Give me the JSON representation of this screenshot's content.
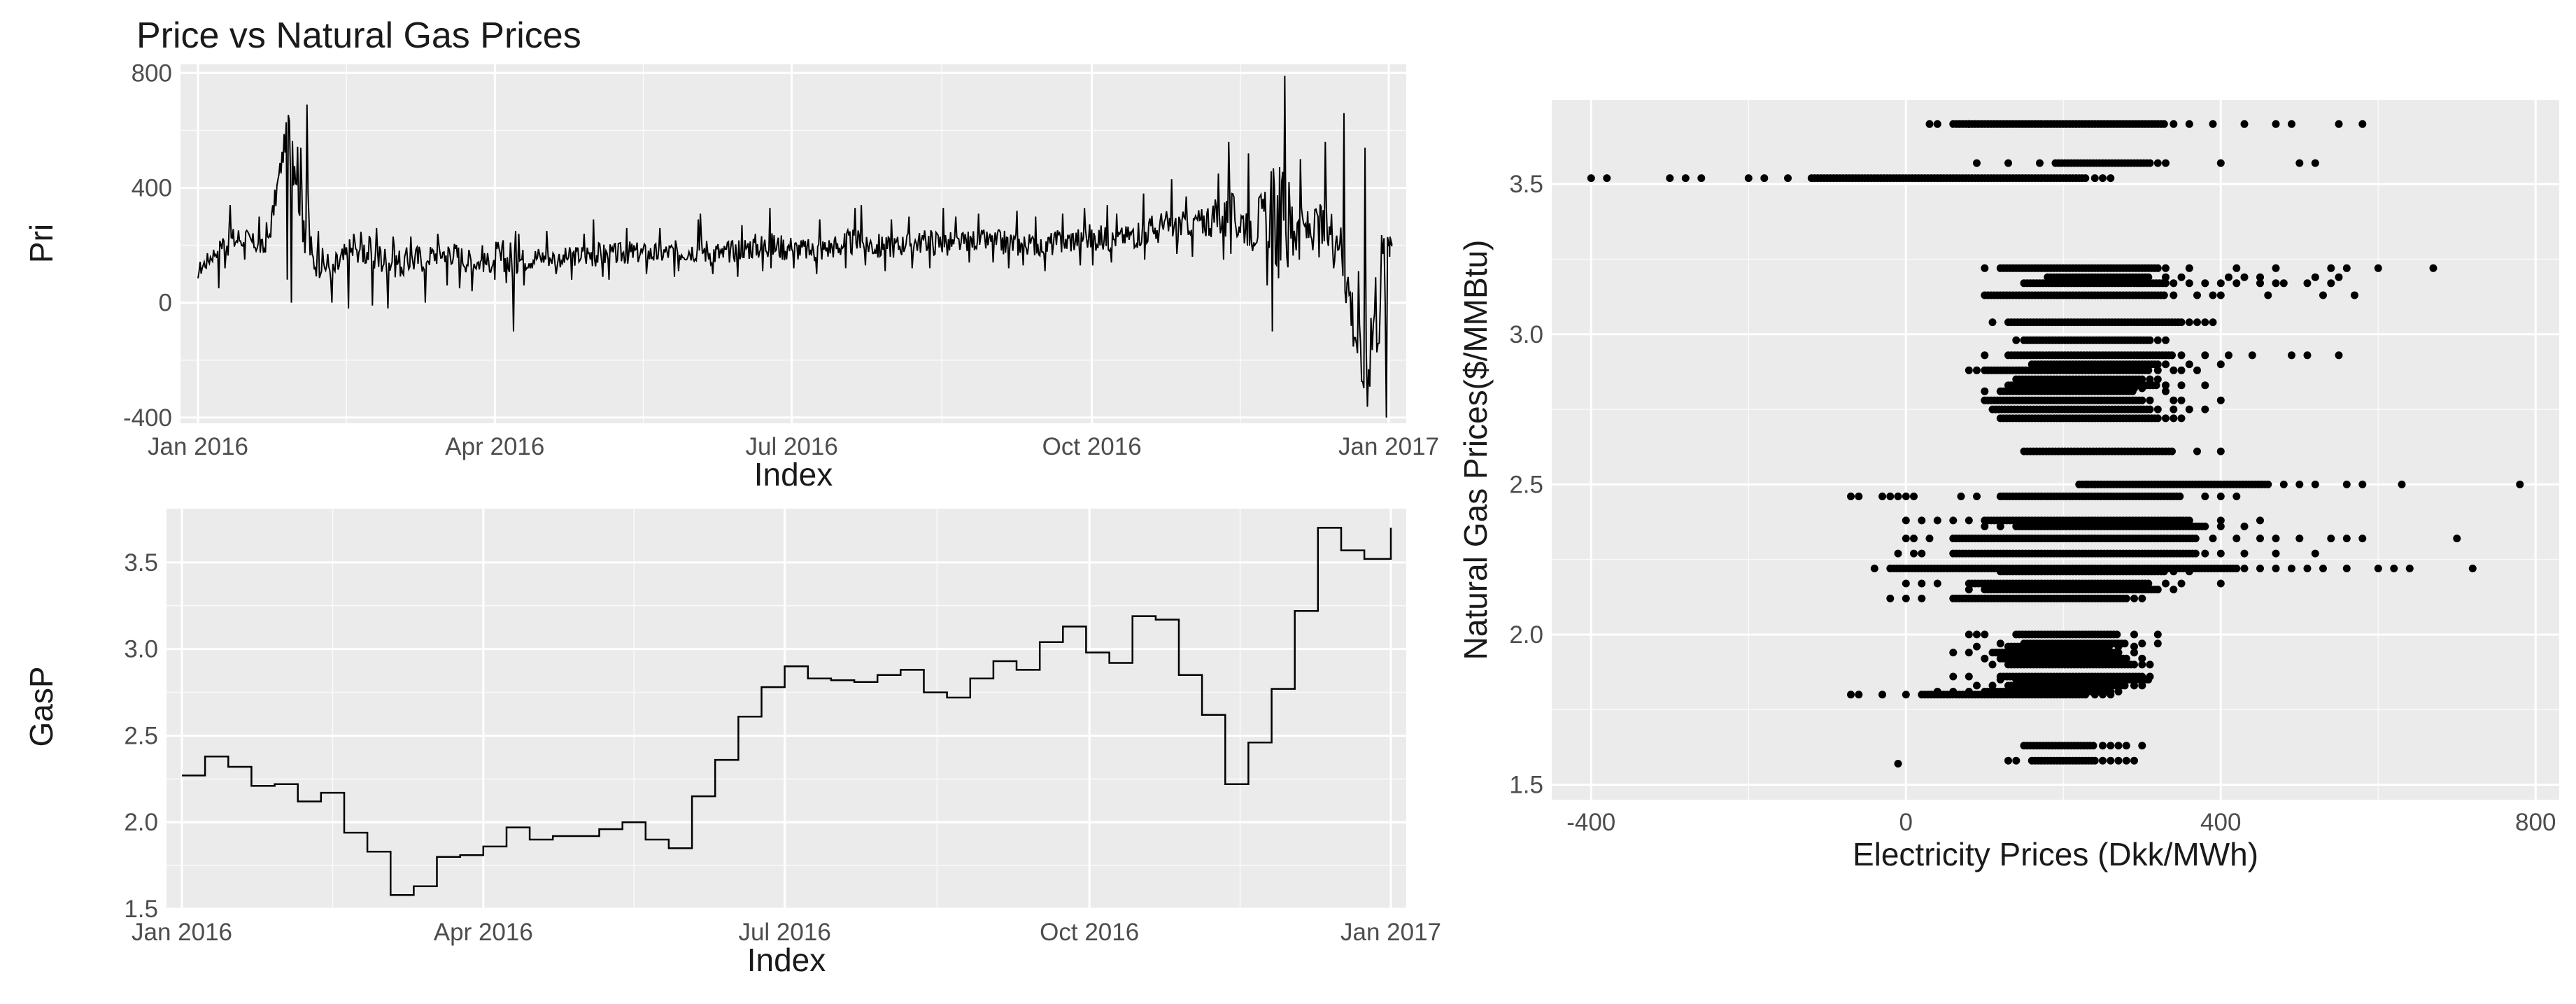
{
  "chart_data": [
    {
      "type": "line",
      "title": "Price vs Natural Gas Prices",
      "xlabel": "Index",
      "ylabel": "Pri",
      "x_ticks": [
        "Jan 2016",
        "Apr 2016",
        "Jul 2016",
        "Oct 2016",
        "Jan 2017"
      ],
      "y_ticks": [
        "-400",
        "0",
        "400",
        "800"
      ],
      "xlim": [
        "2016-01-01",
        "2016-12-31"
      ],
      "ylim": [
        -420,
        830
      ],
      "grid": true,
      "series": [
        {
          "x": [
            "2016-01-01",
            "2016-01-08",
            "2016-01-15",
            "2016-01-22",
            "2016-01-29",
            "2016-02-05",
            "2016-02-12",
            "2016-02-19",
            "2016-02-26",
            "2016-03-04",
            "2016-03-11",
            "2016-03-18",
            "2016-03-25",
            "2016-04-01",
            "2016-04-08",
            "2016-04-15",
            "2016-04-22",
            "2016-04-29",
            "2016-05-06",
            "2016-05-13",
            "2016-05-20",
            "2016-05-27",
            "2016-06-03",
            "2016-06-10",
            "2016-06-17",
            "2016-06-24",
            "2016-07-01",
            "2016-07-08",
            "2016-07-15",
            "2016-07-22",
            "2016-07-29",
            "2016-08-05",
            "2016-08-12",
            "2016-08-19",
            "2016-08-26",
            "2016-09-02",
            "2016-09-09",
            "2016-09-16",
            "2016-09-23",
            "2016-09-30",
            "2016-10-07",
            "2016-10-14",
            "2016-10-21",
            "2016-10-28",
            "2016-11-04",
            "2016-11-11",
            "2016-11-18",
            "2016-11-25",
            "2016-12-02",
            "2016-12-09",
            "2016-12-16",
            "2016-12-23",
            "2016-12-31"
          ],
          "y": [
            110,
            200,
            230,
            180,
            650,
            150,
            120,
            200,
            150,
            140,
            160,
            180,
            140,
            140,
            150,
            160,
            155,
            170,
            165,
            175,
            170,
            180,
            185,
            170,
            195,
            200,
            190,
            180,
            200,
            215,
            190,
            205,
            215,
            200,
            220,
            210,
            205,
            200,
            215,
            230,
            220,
            240,
            260,
            270,
            290,
            300,
            280,
            290,
            260,
            250,
            240,
            -250,
            210
          ],
          "y_max": [
            180,
            340,
            300,
            280,
            690,
            250,
            240,
            260,
            230,
            230,
            240,
            250,
            200,
            250,
            240,
            250,
            240,
            290,
            260,
            270,
            260,
            290,
            310,
            270,
            320,
            330,
            300,
            290,
            330,
            340,
            290,
            300,
            330,
            300,
            310,
            320,
            300,
            310,
            330,
            340,
            310,
            380,
            430,
            370,
            450,
            560,
            520,
            790,
            500,
            560,
            660,
            540,
            230
          ],
          "y_min": [
            50,
            120,
            150,
            80,
            0,
            0,
            -20,
            -10,
            -20,
            0,
            60,
            50,
            40,
            -100,
            60,
            100,
            80,
            90,
            80,
            100,
            90,
            110,
            100,
            90,
            110,
            120,
            120,
            100,
            120,
            130,
            110,
            120,
            120,
            140,
            140,
            120,
            130,
            110,
            130,
            130,
            140,
            150,
            170,
            160,
            150,
            170,
            60,
            -100,
            150,
            120,
            110,
            -400,
            160
          ]
        }
      ]
    },
    {
      "type": "line",
      "title": "",
      "xlabel": "Index",
      "ylabel": "GasP",
      "x_ticks": [
        "Jan 2016",
        "Apr 2016",
        "Jul 2016",
        "Oct 2016",
        "Jan 2017"
      ],
      "y_ticks": [
        "1.5",
        "2.0",
        "2.5",
        "3.0",
        "3.5"
      ],
      "xlim": [
        "2016-01-01",
        "2016-12-31"
      ],
      "ylim": [
        1.5,
        3.75
      ],
      "grid": true,
      "step": true,
      "series": [
        {
          "x": [
            "2016-01-01",
            "2016-01-08",
            "2016-01-15",
            "2016-01-22",
            "2016-01-29",
            "2016-02-05",
            "2016-02-12",
            "2016-02-19",
            "2016-02-26",
            "2016-03-04",
            "2016-03-11",
            "2016-03-18",
            "2016-03-25",
            "2016-04-01",
            "2016-04-08",
            "2016-04-15",
            "2016-04-22",
            "2016-04-29",
            "2016-05-06",
            "2016-05-13",
            "2016-05-20",
            "2016-05-27",
            "2016-06-03",
            "2016-06-10",
            "2016-06-17",
            "2016-06-24",
            "2016-07-01",
            "2016-07-08",
            "2016-07-15",
            "2016-07-22",
            "2016-07-29",
            "2016-08-05",
            "2016-08-12",
            "2016-08-19",
            "2016-08-26",
            "2016-09-02",
            "2016-09-09",
            "2016-09-16",
            "2016-09-23",
            "2016-09-30",
            "2016-10-07",
            "2016-10-14",
            "2016-10-21",
            "2016-10-28",
            "2016-11-04",
            "2016-11-11",
            "2016-11-18",
            "2016-11-25",
            "2016-12-02",
            "2016-12-09",
            "2016-12-16",
            "2016-12-23",
            "2016-12-31"
          ],
          "y": [
            2.27,
            2.38,
            2.32,
            2.21,
            2.22,
            2.12,
            2.17,
            1.94,
            1.83,
            1.58,
            1.63,
            1.8,
            1.81,
            1.86,
            1.97,
            1.9,
            1.92,
            1.92,
            1.96,
            2.0,
            1.9,
            1.85,
            2.15,
            2.36,
            2.61,
            2.78,
            2.9,
            2.83,
            2.82,
            2.81,
            2.85,
            2.88,
            2.75,
            2.72,
            2.83,
            2.93,
            2.88,
            3.04,
            3.13,
            2.98,
            2.92,
            3.19,
            3.17,
            2.85,
            2.62,
            2.22,
            2.46,
            2.77,
            3.22,
            3.7,
            3.57,
            3.52,
            3.7
          ]
        }
      ]
    },
    {
      "type": "scatter",
      "title": "",
      "xlabel": "Electricity Prices (Dkk/MWh)",
      "ylabel": "Natural Gas Prices($/MMBtu)",
      "x_ticks": [
        "-400",
        "0",
        "400",
        "800"
      ],
      "y_ticks": [
        "1.5",
        "2.0",
        "2.5",
        "3.0",
        "3.5"
      ],
      "xlim": [
        -450,
        830
      ],
      "ylim": [
        1.45,
        3.78
      ],
      "grid": true,
      "bands": [
        {
          "y": 3.7,
          "x_from": 60,
          "x_to": 330,
          "outliers": [
            30,
            40,
            80,
            340,
            360,
            390,
            430,
            470,
            490,
            550,
            580
          ]
        },
        {
          "y": 3.57,
          "x_from": 190,
          "x_to": 310,
          "outliers": [
            90,
            130,
            170,
            320,
            330,
            400,
            500,
            520
          ]
        },
        {
          "y": 3.52,
          "x_from": -120,
          "x_to": 230,
          "outliers": [
            -400,
            -380,
            -300,
            -280,
            -260,
            -200,
            -180,
            -150,
            240,
            250,
            260
          ]
        },
        {
          "y": 3.22,
          "x_from": 120,
          "x_to": 320,
          "outliers": [
            100,
            330,
            360,
            420,
            470,
            540,
            560,
            600,
            670
          ]
        },
        {
          "y": 3.19,
          "x_from": 180,
          "x_to": 310,
          "outliers": [
            330,
            350,
            410,
            430,
            450,
            520,
            550
          ]
        },
        {
          "y": 3.17,
          "x_from": 150,
          "x_to": 330,
          "outliers": [
            340,
            360,
            380,
            400,
            420,
            450,
            470,
            480,
            510,
            540
          ]
        },
        {
          "y": 3.13,
          "x_from": 100,
          "x_to": 330,
          "outliers": [
            340,
            370,
            390,
            400,
            460,
            530,
            570
          ]
        },
        {
          "y": 3.04,
          "x_from": 130,
          "x_to": 350,
          "outliers": [
            110,
            360,
            370,
            380,
            390
          ]
        },
        {
          "y": 2.98,
          "x_from": 150,
          "x_to": 310,
          "outliers": [
            140,
            320,
            330
          ]
        },
        {
          "y": 2.93,
          "x_from": 130,
          "x_to": 340,
          "outliers": [
            100,
            350,
            380,
            410,
            440,
            490,
            510,
            550
          ]
        },
        {
          "y": 2.9,
          "x_from": 160,
          "x_to": 320,
          "outliers": [
            330,
            360,
            400
          ]
        },
        {
          "y": 2.88,
          "x_from": 100,
          "x_to": 310,
          "outliers": [
            80,
            90,
            320,
            340,
            350,
            370
          ]
        },
        {
          "y": 2.85,
          "x_from": 140,
          "x_to": 300,
          "outliers": [
            310,
            320
          ]
        },
        {
          "y": 2.83,
          "x_from": 130,
          "x_to": 320,
          "outliers": [
            330,
            350,
            380
          ]
        },
        {
          "y": 2.82,
          "x_from": 150,
          "x_to": 290,
          "outliers": [
            300
          ]
        },
        {
          "y": 2.81,
          "x_from": 120,
          "x_to": 290,
          "outliers": [
            100,
            330
          ]
        },
        {
          "y": 2.78,
          "x_from": 100,
          "x_to": 300,
          "outliers": [
            310,
            340,
            350,
            400
          ]
        },
        {
          "y": 2.75,
          "x_from": 110,
          "x_to": 310,
          "outliers": [
            320,
            340,
            360,
            380
          ]
        },
        {
          "y": 2.72,
          "x_from": 120,
          "x_to": 320,
          "outliers": [
            330,
            340,
            350
          ]
        },
        {
          "y": 2.61,
          "x_from": 150,
          "x_to": 340,
          "outliers": [
            370,
            400
          ]
        },
        {
          "y": 2.5,
          "x_from": 220,
          "x_to": 460,
          "outliers": [
            230,
            240,
            480,
            500,
            520,
            560,
            580,
            630,
            780
          ]
        },
        {
          "y": 2.46,
          "x_from": 120,
          "x_to": 350,
          "outliers": [
            -70,
            -60,
            -30,
            -20,
            -10,
            0,
            10,
            70,
            90,
            380,
            400,
            420
          ]
        },
        {
          "y": 2.38,
          "x_from": 100,
          "x_to": 360,
          "outliers": [
            0,
            20,
            40,
            60,
            80,
            400,
            450
          ]
        },
        {
          "y": 2.36,
          "x_from": 140,
          "x_to": 380,
          "outliers": [
            100,
            120,
            400,
            430
          ]
        },
        {
          "y": 2.32,
          "x_from": 60,
          "x_to": 370,
          "outliers": [
            0,
            10,
            30,
            390,
            420,
            450,
            470,
            500,
            540,
            560,
            580,
            700
          ]
        },
        {
          "y": 2.27,
          "x_from": 60,
          "x_to": 370,
          "outliers": [
            -10,
            10,
            20,
            380,
            400,
            430,
            470,
            520
          ]
        },
        {
          "y": 2.22,
          "x_from": -20,
          "x_to": 420,
          "outliers": [
            -40,
            430,
            450,
            470,
            490,
            510,
            530,
            560,
            600,
            620,
            640,
            720
          ]
        },
        {
          "y": 2.21,
          "x_from": 120,
          "x_to": 330,
          "outliers": [
            340,
            360
          ]
        },
        {
          "y": 2.17,
          "x_from": 80,
          "x_to": 310,
          "outliers": [
            0,
            20,
            40,
            330,
            350,
            400
          ]
        },
        {
          "y": 2.15,
          "x_from": 100,
          "x_to": 320,
          "outliers": [
            80,
            340
          ]
        },
        {
          "y": 2.12,
          "x_from": 60,
          "x_to": 280,
          "outliers": [
            -20,
            0,
            20,
            290,
            300
          ]
        },
        {
          "y": 2.0,
          "x_from": 140,
          "x_to": 270,
          "outliers": [
            80,
            90,
            100,
            290,
            320
          ]
        },
        {
          "y": 1.97,
          "x_from": 150,
          "x_to": 280,
          "outliers": [
            120,
            300,
            320
          ]
        },
        {
          "y": 1.96,
          "x_from": 130,
          "x_to": 260,
          "outliers": [
            90,
            270,
            290
          ]
        },
        {
          "y": 1.94,
          "x_from": 110,
          "x_to": 270,
          "outliers": [
            60,
            80,
            290
          ]
        },
        {
          "y": 1.92,
          "x_from": 120,
          "x_to": 280,
          "outliers": [
            100,
            300
          ]
        },
        {
          "y": 1.9,
          "x_from": 130,
          "x_to": 290,
          "outliers": [
            110,
            300,
            310
          ]
        },
        {
          "y": 1.86,
          "x_from": 120,
          "x_to": 300,
          "outliers": [
            60,
            80,
            310
          ]
        },
        {
          "y": 1.85,
          "x_from": 140,
          "x_to": 310,
          "outliers": [
            120
          ]
        },
        {
          "y": 1.83,
          "x_from": 130,
          "x_to": 280,
          "outliers": [
            90,
            110,
            290,
            300
          ]
        },
        {
          "y": 1.81,
          "x_from": 100,
          "x_to": 260,
          "outliers": [
            40,
            60,
            80,
            270
          ]
        },
        {
          "y": 1.8,
          "x_from": 20,
          "x_to": 230,
          "outliers": [
            -70,
            -60,
            -30,
            0,
            240,
            250,
            260
          ]
        },
        {
          "y": 1.63,
          "x_from": 150,
          "x_to": 240,
          "outliers": [
            250,
            260,
            270,
            280,
            300
          ]
        },
        {
          "y": 1.58,
          "x_from": 160,
          "x_to": 240,
          "outliers": [
            130,
            140,
            250,
            260,
            270,
            280,
            290
          ]
        },
        {
          "y": 1.57,
          "x_from": -10,
          "x_to": -10,
          "outliers": []
        }
      ]
    }
  ]
}
